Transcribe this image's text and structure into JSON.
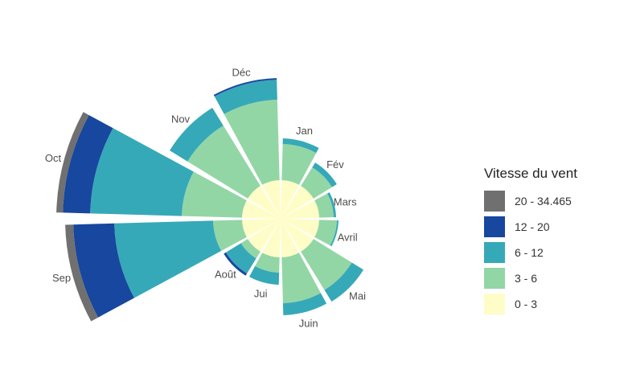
{
  "chart_data": {
    "type": "polar-stacked-bar",
    "title": "",
    "legend_position": "right",
    "legend_title": "Vitesse du vent",
    "bins": [
      {
        "label": "20 - 34.465",
        "color": "#707070"
      },
      {
        "label": "12 - 20",
        "color": "#17479e"
      },
      {
        "label": "6 - 12",
        "color": "#36a9b8"
      },
      {
        "label": "3 - 6",
        "color": "#93d6a6"
      },
      {
        "label": "0 - 3",
        "color": "#fffdc7"
      }
    ],
    "categories": [
      "Jan",
      "Fév",
      "Mars",
      "Avril",
      "Mai",
      "Juin",
      "Jui",
      "Août",
      "Sep",
      "Oct",
      "Nov",
      "Déc"
    ],
    "series": [
      {
        "name": "0 - 3",
        "values": [
          48,
          48,
          48,
          48,
          48,
          48,
          48,
          48,
          48,
          48,
          48,
          48
        ]
      },
      {
        "name": "3 - 6",
        "values": [
          45,
          27,
          18,
          22,
          56,
          57,
          19,
          10,
          36,
          75,
          88,
          100
        ]
      },
      {
        "name": "6 - 12",
        "values": [
          7,
          7,
          3,
          2,
          17,
          15,
          15,
          22,
          123,
          114,
          26,
          25
        ]
      },
      {
        "name": "12 - 20",
        "values": [
          0,
          0,
          0,
          0,
          0,
          0,
          0,
          3,
          51,
          34,
          0,
          2
        ]
      },
      {
        "name": "20 - 34.465",
        "values": [
          0,
          0,
          0,
          0,
          0,
          0,
          0,
          0,
          10,
          8,
          0,
          0
        ]
      }
    ]
  }
}
